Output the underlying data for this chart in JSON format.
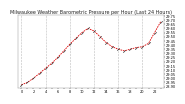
{
  "title": "Milwaukee Weather Barometric Pressure per Hour (Last 24 Hours)",
  "hours": [
    0,
    1,
    2,
    3,
    4,
    5,
    6,
    7,
    8,
    9,
    10,
    11,
    12,
    13,
    14,
    15,
    16,
    17,
    18,
    19,
    20,
    21,
    22,
    23
  ],
  "pressure": [
    28.92,
    28.95,
    29.0,
    29.06,
    29.12,
    29.18,
    29.25,
    29.33,
    29.41,
    29.48,
    29.55,
    29.6,
    29.57,
    29.5,
    29.43,
    29.38,
    29.35,
    29.33,
    29.35,
    29.37,
    29.38,
    29.42,
    29.55,
    29.68
  ],
  "line_color": "#dd0000",
  "marker_color": "#333333",
  "bg_color": "#ffffff",
  "grid_color": "#bbbbbb",
  "ylim_min": 28.88,
  "ylim_max": 29.76,
  "ytick_vals": [
    28.9,
    28.95,
    29.0,
    29.05,
    29.1,
    29.15,
    29.2,
    29.25,
    29.3,
    29.35,
    29.4,
    29.45,
    29.5,
    29.55,
    29.6,
    29.65,
    29.7,
    29.75
  ],
  "title_fontsize": 3.5,
  "tick_fontsize": 2.5,
  "grid_xticks": [
    0,
    4,
    8,
    12,
    16,
    20
  ]
}
